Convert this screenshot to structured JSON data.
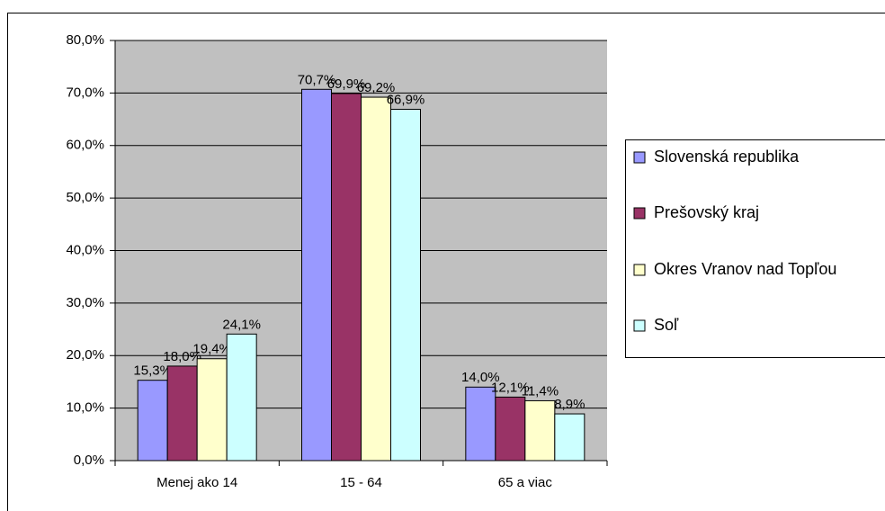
{
  "chart_data": {
    "type": "bar",
    "categories": [
      "Menej ako 14",
      "15 - 64",
      "65 a viac"
    ],
    "series": [
      {
        "name": "Slovenská republika",
        "color": "#9999ff",
        "values": [
          15.3,
          70.7,
          14.0
        ],
        "value_labels": [
          "15,3%",
          "70,7%",
          "14,0%"
        ]
      },
      {
        "name": "Prešovský kraj",
        "color": "#993366",
        "values": [
          18.0,
          69.9,
          12.1
        ],
        "value_labels": [
          "18,0%",
          "69,9%",
          "12,1%"
        ]
      },
      {
        "name": "Okres Vranov nad Topľou",
        "color": "#ffffcc",
        "values": [
          19.4,
          69.2,
          11.4
        ],
        "value_labels": [
          "19,4%",
          "69,2%",
          "11,4%"
        ]
      },
      {
        "name": "Soľ",
        "color": "#ccffff",
        "values": [
          24.1,
          66.9,
          8.9
        ],
        "value_labels": [
          "24,1%",
          "66,9%",
          "8,9%"
        ]
      }
    ],
    "ylim": [
      0,
      80
    ],
    "yticks": [
      {
        "value": 0,
        "label": "0,0%"
      },
      {
        "value": 10,
        "label": "10,0%"
      },
      {
        "value": 20,
        "label": "20,0%"
      },
      {
        "value": 30,
        "label": "30,0%"
      },
      {
        "value": 40,
        "label": "40,0%"
      },
      {
        "value": 50,
        "label": "50,0%"
      },
      {
        "value": 60,
        "label": "60,0%"
      },
      {
        "value": 70,
        "label": "70,0%"
      },
      {
        "value": 80,
        "label": "80,0%"
      }
    ],
    "grid": true,
    "legend": "right"
  }
}
